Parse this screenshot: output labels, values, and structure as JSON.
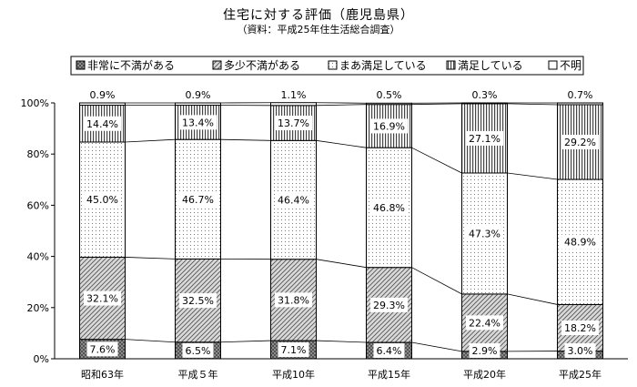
{
  "chart_data": {
    "type": "bar",
    "stacked": true,
    "percent": true,
    "title": "住宅に対する評価（鹿児島県）",
    "subtitle": "（資料：平成25年住生活総合調査）",
    "categories": [
      "昭和63年",
      "平成５年",
      "平成10年",
      "平成15年",
      "平成20年",
      "平成25年"
    ],
    "series": [
      {
        "name": "非常に不満がある",
        "values": [
          7.6,
          6.5,
          7.1,
          6.4,
          2.9,
          3.0
        ],
        "pattern": "cross",
        "labels": [
          "7.6%",
          "6.5%",
          "7.1%",
          "6.4%",
          "2.9%",
          "3.0%"
        ]
      },
      {
        "name": "多少不満がある",
        "values": [
          32.1,
          32.5,
          31.8,
          29.3,
          22.4,
          18.2
        ],
        "pattern": "diag",
        "labels": [
          "32.1%",
          "32.5%",
          "31.8%",
          "29.3%",
          "22.4%",
          "18.2%"
        ]
      },
      {
        "name": "まあ満足している",
        "values": [
          45.0,
          46.7,
          46.4,
          46.8,
          47.3,
          48.9
        ],
        "pattern": "dots",
        "labels": [
          "45.0%",
          "46.7%",
          "46.4%",
          "46.8%",
          "47.3%",
          "48.9%"
        ]
      },
      {
        "name": "満足している",
        "values": [
          14.4,
          13.4,
          13.7,
          16.9,
          27.1,
          29.2
        ],
        "pattern": "vert",
        "labels": [
          "14.4%",
          "13.4%",
          "13.7%",
          "16.9%",
          "27.1%",
          "29.2%"
        ]
      },
      {
        "name": "不明",
        "values": [
          0.9,
          0.9,
          1.1,
          0.5,
          0.3,
          0.7
        ],
        "pattern": "blank",
        "labels": [
          "0.9%",
          "0.9%",
          "1.1%",
          "0.5%",
          "0.3%",
          "0.7%"
        ]
      }
    ],
    "yticks": [
      "0%",
      "20%",
      "40%",
      "60%",
      "80%",
      "100%"
    ],
    "ylim": [
      0,
      100
    ],
    "legend_position": "top",
    "connector_lines": true,
    "grid": false
  }
}
